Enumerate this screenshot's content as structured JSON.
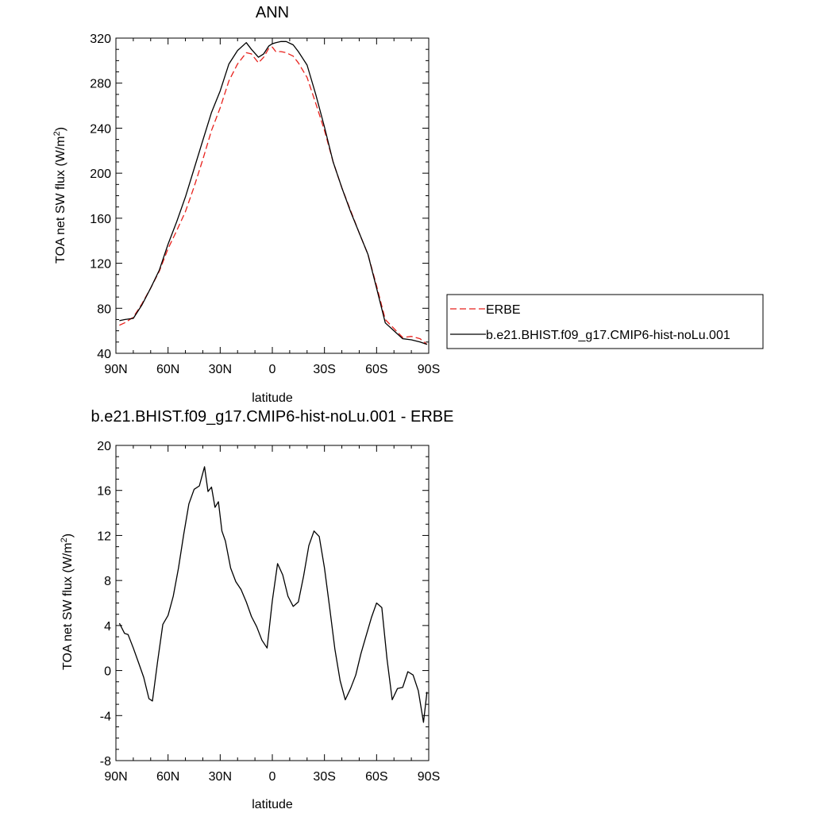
{
  "chart_data": [
    {
      "type": "line",
      "title": "ANN",
      "xlabel": "latitude",
      "ylabel": "TOA net SW flux (W/m",
      "ylabel_sup": "2",
      "ylabel_end": ")",
      "xlim": [
        90,
        -90
      ],
      "ylim": [
        40,
        320
      ],
      "xticks": [
        90,
        60,
        30,
        0,
        -30,
        -60,
        -90
      ],
      "xtick_labels": [
        "90N",
        "60N",
        "30N",
        "0",
        "30S",
        "60S",
        "90S"
      ],
      "yticks": [
        40,
        80,
        120,
        160,
        200,
        240,
        280,
        320
      ],
      "ytick_labels": [
        "40",
        "80",
        "120",
        "160",
        "200",
        "240",
        "280",
        "320"
      ],
      "legend_placement": "right",
      "series": [
        {
          "name": "ERBE",
          "color": "#e8211c",
          "dash": "dashed",
          "x": [
            88,
            85,
            80,
            75,
            70,
            65,
            60,
            55,
            50,
            45,
            40,
            35,
            30,
            25,
            20,
            15,
            12,
            8,
            5,
            2,
            0,
            -2,
            -5,
            -8,
            -12,
            -15,
            -20,
            -25,
            -30,
            -35,
            -40,
            -45,
            -50,
            -55,
            -60,
            -65,
            -70,
            -75,
            -80,
            -85,
            -89
          ],
          "y": [
            65,
            67,
            72,
            84,
            98,
            113,
            133,
            149,
            166,
            188,
            212,
            238,
            258,
            282,
            297,
            307,
            306,
            298,
            303,
            311,
            312,
            308,
            308,
            307,
            304,
            298,
            285,
            262,
            238,
            210,
            187,
            167,
            147,
            128,
            100,
            70,
            62,
            54,
            55,
            53,
            48
          ]
        },
        {
          "name": "b.e21.BHIST.f09_g17.CMIP6-hist-noLu.001",
          "color": "#000000",
          "dash": "solid",
          "x": [
            88,
            85,
            80,
            75,
            70,
            65,
            60,
            55,
            50,
            45,
            40,
            35,
            30,
            25,
            20,
            15,
            12,
            8,
            5,
            2,
            0,
            -2,
            -5,
            -8,
            -12,
            -15,
            -20,
            -25,
            -30,
            -35,
            -40,
            -45,
            -50,
            -55,
            -60,
            -65,
            -70,
            -75,
            -80,
            -85,
            -89
          ],
          "y": [
            69,
            70,
            71,
            83,
            98,
            114,
            137,
            157,
            179,
            204,
            229,
            254,
            273,
            297,
            309,
            316,
            310,
            303,
            306,
            313,
            315,
            316,
            317,
            317,
            314,
            308,
            296,
            270,
            241,
            210,
            187,
            166,
            147,
            128,
            98,
            67,
            60,
            53,
            52,
            50,
            48
          ]
        }
      ]
    },
    {
      "type": "line",
      "title": "b.e21.BHIST.f09_g17.CMIP6-hist-noLu.001 - ERBE",
      "xlabel": "latitude",
      "ylabel": "TOA net SW flux (W/m",
      "ylabel_sup": "2",
      "ylabel_end": ")",
      "xlim": [
        90,
        -90
      ],
      "ylim": [
        -8,
        20
      ],
      "xticks": [
        90,
        60,
        30,
        0,
        -30,
        -60,
        -90
      ],
      "xtick_labels": [
        "90N",
        "60N",
        "30N",
        "0",
        "30S",
        "60S",
        "90S"
      ],
      "yticks": [
        -8,
        -4,
        0,
        4,
        8,
        12,
        16,
        20
      ],
      "ytick_labels": [
        "-8",
        "-4",
        "0",
        "4",
        "8",
        "12",
        "16",
        "20"
      ],
      "series": [
        {
          "color": "#000000",
          "dash": "solid",
          "x": [
            88,
            85,
            83,
            80,
            77,
            74,
            71,
            69,
            66,
            63,
            60,
            57,
            54,
            51,
            48,
            45,
            42,
            39,
            37,
            35,
            33,
            31,
            29,
            27,
            24,
            21,
            18,
            15,
            12,
            9,
            6,
            3,
            0,
            -3,
            -6,
            -9,
            -12,
            -15,
            -18,
            -21,
            -24,
            -27,
            -30,
            -33,
            -36,
            -39,
            -42,
            -45,
            -48,
            -51,
            -54,
            -57,
            -60,
            -63,
            -66,
            -69,
            -72,
            -75,
            -78,
            -81,
            -84,
            -87,
            -89
          ],
          "y": [
            4.2,
            3.3,
            3.2,
            2.0,
            0.7,
            -0.6,
            -2.5,
            -2.7,
            0.8,
            4.1,
            4.9,
            6.6,
            9.1,
            12.1,
            14.8,
            16.1,
            16.4,
            18.1,
            15.9,
            16.3,
            14.5,
            15.0,
            12.4,
            11.5,
            9.1,
            7.9,
            7.2,
            6.1,
            4.8,
            3.9,
            2.7,
            2.0,
            6.2,
            9.5,
            8.5,
            6.6,
            5.7,
            6.1,
            8.4,
            11.1,
            12.4,
            11.9,
            9.1,
            5.6,
            1.9,
            -0.9,
            -2.6,
            -1.6,
            -0.4,
            1.5,
            3.1,
            4.7,
            6.0,
            5.6,
            1.0,
            -2.6,
            -1.6,
            -1.5,
            -0.1,
            -0.4,
            -1.8,
            -4.6,
            -1.9
          ]
        }
      ]
    }
  ]
}
